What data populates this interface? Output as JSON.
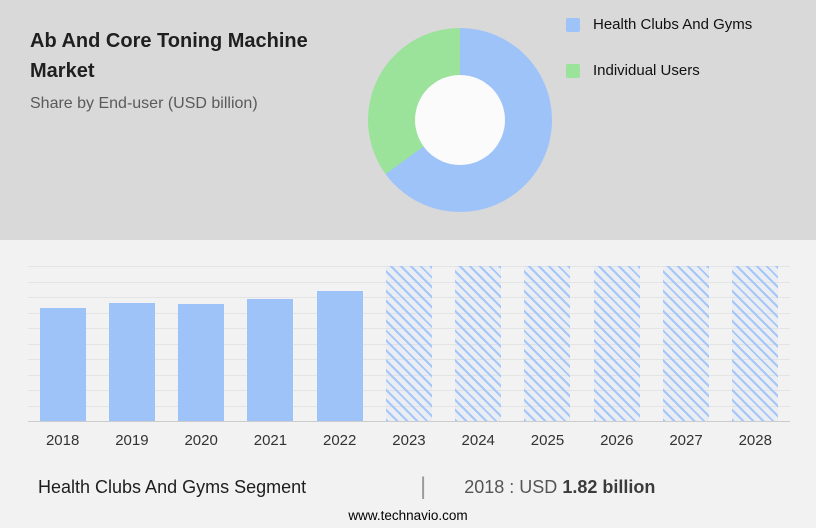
{
  "header": {
    "title": "Ab And Core Toning Machine Market",
    "subtitle": "Share by End-user (USD billion)"
  },
  "colors": {
    "blue": "#9ec3f8",
    "green": "#9be29b",
    "hero_bg": "#d9d9d9",
    "body_bg": "#f2f2f2"
  },
  "legend": [
    {
      "label": "Health Clubs And Gyms",
      "color": "#9ec3f8"
    },
    {
      "label": "Individual Users",
      "color": "#9be29b"
    }
  ],
  "chart_data": [
    {
      "type": "pie",
      "donut": true,
      "title": "Share by End-user (USD billion)",
      "labels": [
        "Health Clubs And Gyms",
        "Individual Users"
      ],
      "values": [
        65,
        35
      ],
      "colors": [
        "#9ec3f8",
        "#9be29b"
      ],
      "legend_position": "right"
    },
    {
      "type": "bar",
      "title": "",
      "xlabel": "",
      "ylabel": "",
      "ylim": [
        0,
        2.5
      ],
      "grid": true,
      "categories": [
        "2018",
        "2019",
        "2020",
        "2021",
        "2022",
        "2023",
        "2024",
        "2025",
        "2026",
        "2027",
        "2028"
      ],
      "bars": [
        {
          "year": "2018",
          "value": 1.82,
          "forecast": false
        },
        {
          "year": "2019",
          "value": 1.9,
          "forecast": false
        },
        {
          "year": "2020",
          "value": 1.88,
          "forecast": false
        },
        {
          "year": "2021",
          "value": 1.97,
          "forecast": false
        },
        {
          "year": "2022",
          "value": 2.1,
          "forecast": false
        },
        {
          "year": "2023",
          "value": null,
          "forecast": true
        },
        {
          "year": "2024",
          "value": null,
          "forecast": true
        },
        {
          "year": "2025",
          "value": null,
          "forecast": true
        },
        {
          "year": "2026",
          "value": null,
          "forecast": true
        },
        {
          "year": "2027",
          "value": null,
          "forecast": true
        },
        {
          "year": "2028",
          "value": null,
          "forecast": true
        }
      ]
    }
  ],
  "summary": {
    "segment_label": "Health Clubs And Gyms Segment",
    "separator": "|",
    "value_prefix": "2018 : USD",
    "value_bold": "1.82 billion"
  },
  "footer": {
    "url": "www.technavio.com"
  }
}
